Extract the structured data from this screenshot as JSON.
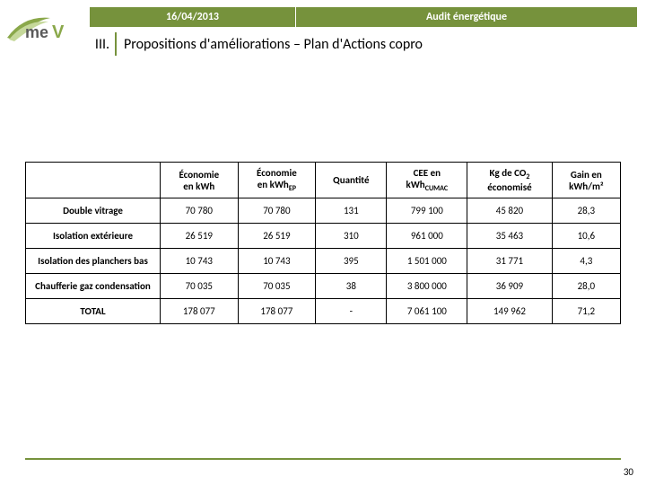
{
  "header": {
    "date": "16/04/2013",
    "title": "Audit énergétique"
  },
  "section": {
    "number": "III.",
    "title": "Propositions d'améliorations – Plan d'Actions copro"
  },
  "table": {
    "headers": [
      {
        "line1": "",
        "line2": ""
      },
      {
        "line1": "Économie",
        "line2": "en kWh"
      },
      {
        "line1": "Économie",
        "line2": "en kWh",
        "sub2": "EP"
      },
      {
        "line1": "Quantité",
        "line2": ""
      },
      {
        "line1": "CEE en",
        "line2": "kWh",
        "sub2": "CUMAC"
      },
      {
        "line1": "Kg de CO",
        "sub1": "2",
        "line2": "économisé"
      },
      {
        "line1": "Gain en",
        "line2": "kWh/m²"
      }
    ],
    "rows": [
      {
        "label": "Double vitrage",
        "c": [
          "70 780",
          "70 780",
          "131",
          "799 100",
          "45 820",
          "28,3"
        ]
      },
      {
        "label": "Isolation extérieure",
        "c": [
          "26 519",
          "26 519",
          "310",
          "961 000",
          "35 463",
          "10,6"
        ]
      },
      {
        "label": "Isolation des planchers bas",
        "c": [
          "10 743",
          "10 743",
          "395",
          "1 501 000",
          "31 771",
          "4,3"
        ]
      },
      {
        "label": "Chaufferie gaz condensation",
        "c": [
          "70 035",
          "70 035",
          "38",
          "3 800 000",
          "36 909",
          "28,0"
        ]
      },
      {
        "label": "TOTAL",
        "c": [
          "178 077",
          "178 077",
          "-",
          "7 061 100",
          "149 962",
          "71,2"
        ]
      }
    ]
  },
  "page": "30",
  "colors": {
    "accent": "#76923c",
    "logo_swoosh_dark": "#8aa84a",
    "logo_swoosh_light": "#c5d89a",
    "logo_text": "#5a5a5a"
  }
}
